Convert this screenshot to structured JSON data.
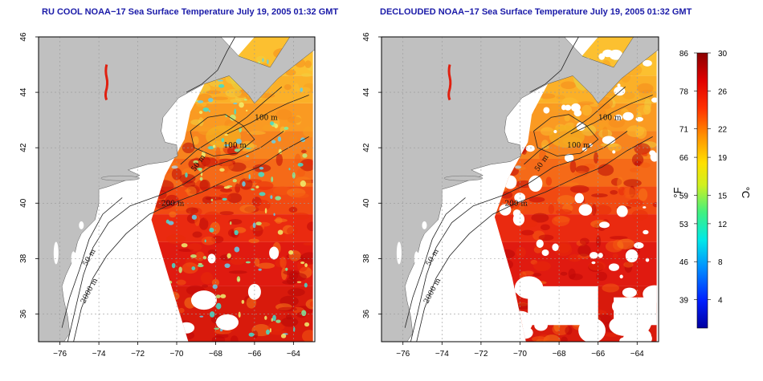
{
  "chart_data": [
    {
      "type": "heatmap",
      "title": "RU COOL NOAA−17 Sea Surface Temperature July 19, 2005 01:32 GMT",
      "x_ticks": [
        -76,
        -74,
        -72,
        -70,
        -68,
        -66,
        -64
      ],
      "y_ticks": [
        36,
        38,
        40,
        42,
        44,
        46
      ],
      "xlim": [
        -77.1,
        -62.9
      ],
      "ylim": [
        35.0,
        46.0
      ],
      "grid": true,
      "contour_labels": [
        "100 m",
        "100 m",
        "50 m",
        "200 m",
        "50 m",
        "2000 m"
      ]
    },
    {
      "type": "heatmap",
      "title": "DECLOUDED NOAA−17 Sea Surface Temperature July 19, 2005 01:32 GMT",
      "x_ticks": [
        -76,
        -74,
        -72,
        -70,
        -68,
        -66,
        -64
      ],
      "y_ticks": [
        36,
        38,
        40,
        42,
        44,
        46
      ],
      "xlim": [
        -77.1,
        -62.9
      ],
      "ylim": [
        35.0,
        46.0
      ],
      "grid": true,
      "contour_labels": [
        "100 m",
        "100 m",
        "50 m",
        "200 m",
        "50 m",
        "2000 m"
      ]
    }
  ],
  "colorbar": {
    "fahrenheit_ticks": [
      86,
      78,
      71,
      66,
      59,
      53,
      46,
      39
    ],
    "celsius_ticks": [
      30,
      26,
      22,
      19,
      15,
      12,
      8,
      4
    ],
    "fahrenheit_unit": "°F",
    "celsius_unit": "°C",
    "range_c": [
      1,
      30
    ]
  },
  "colors": {
    "land": "#c0c0c0",
    "title": "#1a1aa8",
    "grid": "#9a9a9a"
  }
}
